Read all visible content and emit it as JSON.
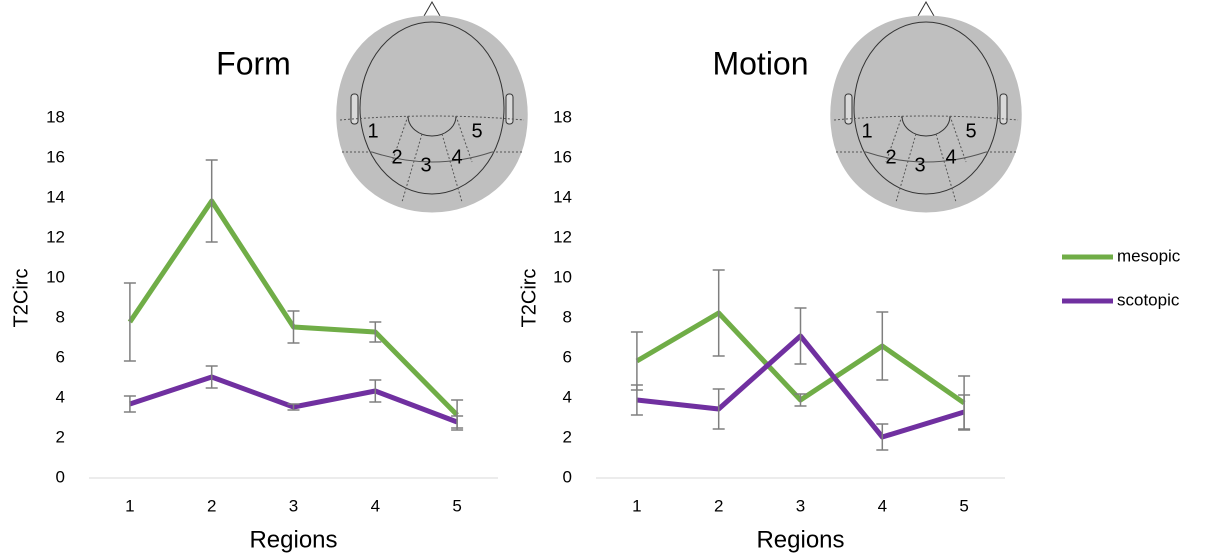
{
  "chart_data": [
    {
      "type": "line",
      "title": "Form",
      "x_label": "Regions",
      "y_label": "T2Circ",
      "categories": [
        "1",
        "2",
        "3",
        "4",
        "5"
      ],
      "region_labels": [
        "1",
        "2",
        "3",
        "4",
        "5"
      ],
      "ylim": [
        0,
        18
      ],
      "yticks": [
        0,
        2,
        4,
        6,
        8,
        10,
        12,
        14,
        16,
        18
      ],
      "series": [
        {
          "name": "mesopic",
          "color": "#70ad47",
          "values": [
            7.8,
            13.85,
            7.55,
            7.3,
            3.15
          ],
          "errors": [
            1.95,
            2.05,
            0.8,
            0.5,
            0.75
          ]
        },
        {
          "name": "scotopic",
          "color": "#7030a0",
          "values": [
            3.7,
            5.05,
            3.55,
            4.35,
            2.8
          ],
          "errors": [
            0.4,
            0.55,
            0.15,
            0.55,
            0.3
          ]
        }
      ]
    },
    {
      "type": "line",
      "title": "Motion",
      "x_label": "Regions",
      "y_label": "T2Circ",
      "categories": [
        "1",
        "2",
        "3",
        "4",
        "5"
      ],
      "region_labels": [
        "1",
        "2",
        "3",
        "4",
        "5"
      ],
      "ylim": [
        0,
        18
      ],
      "yticks": [
        0,
        2,
        4,
        6,
        8,
        10,
        12,
        14,
        16,
        18
      ],
      "series": [
        {
          "name": "mesopic",
          "color": "#70ad47",
          "values": [
            5.85,
            8.25,
            3.9,
            6.6,
            3.75
          ],
          "errors": [
            1.45,
            2.15,
            0.3,
            1.7,
            1.35
          ]
        },
        {
          "name": "scotopic",
          "color": "#7030a0",
          "values": [
            3.9,
            3.45,
            7.1,
            2.05,
            3.3
          ],
          "errors": [
            0.75,
            1.0,
            1.4,
            0.65,
            0.85
          ]
        }
      ]
    }
  ]
}
